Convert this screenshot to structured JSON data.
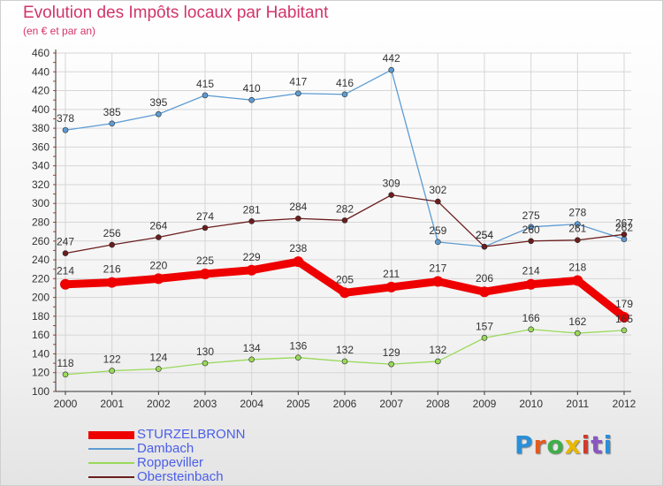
{
  "header": {
    "title": "Evolution des Impôts locaux par Habitant",
    "subtitle": "(en € et par an)"
  },
  "logo": {
    "text": "Proxiti",
    "colors": [
      "#2a8fd8",
      "#e35a1e",
      "#3fae49",
      "#e8b800",
      "#d23a2a",
      "#8a56c2",
      "#2a8fd8"
    ]
  },
  "chart_data": {
    "type": "line",
    "x": [
      "2000",
      "2001",
      "2002",
      "2003",
      "2004",
      "2005",
      "2006",
      "2007",
      "2008",
      "2009",
      "2010",
      "2011",
      "2012"
    ],
    "ylim": [
      100,
      460
    ],
    "yticks": [
      100,
      120,
      140,
      160,
      180,
      200,
      220,
      240,
      260,
      280,
      300,
      320,
      340,
      360,
      380,
      400,
      420,
      440,
      460
    ],
    "grid": true,
    "legend_position": "bottom-left",
    "series": [
      {
        "name": "Dambach",
        "color": "#5e9cd3",
        "values": [
          378,
          385,
          395,
          415,
          410,
          417,
          416,
          442,
          259,
          254,
          275,
          278,
          262
        ],
        "labels": [
          "378",
          "385",
          "395",
          "415",
          "410",
          "417",
          "416",
          "442",
          "259",
          "254",
          "275",
          "278",
          "262"
        ]
      },
      {
        "name": "Obersteinbach",
        "color": "#6b1d1d",
        "values": [
          247,
          256,
          264,
          274,
          281,
          284,
          282,
          309,
          302,
          254,
          260,
          261,
          267
        ],
        "labels": [
          "247",
          "256",
          "264",
          "274",
          "281",
          "284",
          "282",
          "309",
          "302",
          "254",
          "260",
          "261",
          "267"
        ]
      },
      {
        "name": "Roppeviller",
        "color": "#9ad95a",
        "values": [
          118,
          122,
          124,
          130,
          134,
          136,
          132,
          129,
          132,
          157,
          166,
          162,
          165
        ],
        "labels": [
          "118",
          "122",
          "124",
          "130",
          "134",
          "136",
          "132",
          "129",
          "132",
          "157",
          "166",
          "162",
          "165"
        ]
      },
      {
        "name": "STURZELBRONN",
        "color": "#ee0000",
        "values": [
          214,
          216,
          220,
          225,
          229,
          238,
          205,
          211,
          217,
          206,
          214,
          218,
          179
        ],
        "labels": [
          "214",
          "216",
          "220",
          "225",
          "229",
          "238",
          "205",
          "211",
          "217",
          "206",
          "214",
          "218",
          "179"
        ]
      }
    ],
    "legend_order": [
      "STURZELBRONN",
      "Dambach",
      "Roppeviller",
      "Obersteinbach"
    ]
  }
}
